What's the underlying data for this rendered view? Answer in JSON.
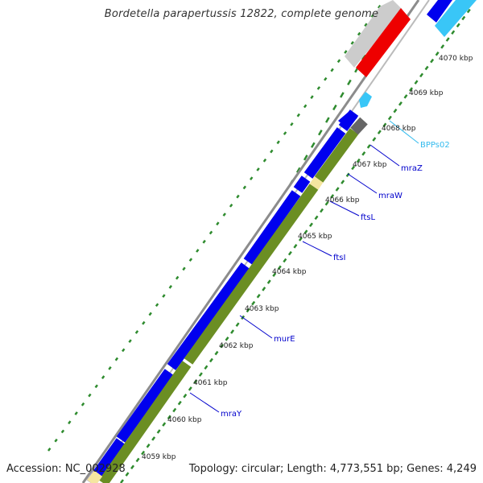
{
  "title": "Bordetella parapertussis 12822, complete genome",
  "accession": "Accession: NC_002928",
  "topology": "Topology: circular; Length: 4,773,551 bp; Genes: 4,249",
  "colors": {
    "backbone": "#8c8c8c",
    "cds_forward": "#0000ee",
    "cds_reverse_accent": "#39c6f7",
    "gene_red": "#ee0000",
    "gene_grey": "#cccccc",
    "gene_darkgrey": "#666666",
    "orf_olive": "#6b8e23",
    "orf_light": "#f5e6a0",
    "gc_dots": "#2e8b2e",
    "gene_label": "#0000cc",
    "rna_label": "#33bbee"
  },
  "ruler_labels": [
    "4059 kbp",
    "4060 kbp",
    "4061 kbp",
    "4062 kbp",
    "4063 kbp",
    "4064 kbp",
    "4065 kbp",
    "4066 kbp",
    "4067 kbp",
    "4068 kbp",
    "4069 kbp",
    "4070 kbp"
  ],
  "gene_labels": [
    {
      "name": "mraY",
      "color": "#0000cc"
    },
    {
      "name": "murE",
      "color": "#0000cc"
    },
    {
      "name": "ftsI",
      "color": "#0000cc"
    },
    {
      "name": "ftsL",
      "color": "#0000cc"
    },
    {
      "name": "mraW",
      "color": "#0000cc"
    },
    {
      "name": "mraZ",
      "color": "#0000cc"
    },
    {
      "name": "BPPs02",
      "color": "#33bbee"
    }
  ]
}
